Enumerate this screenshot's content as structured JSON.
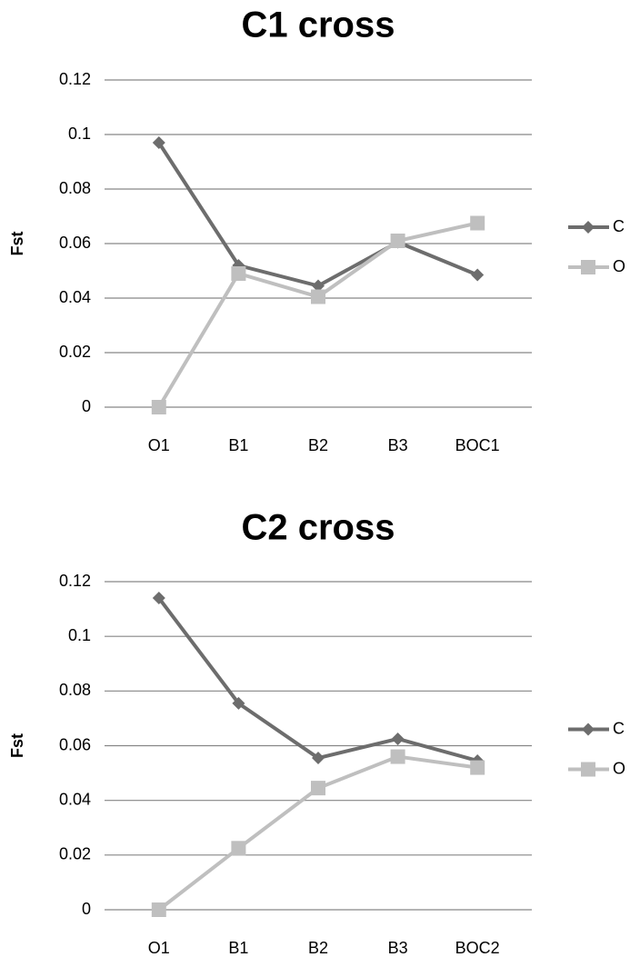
{
  "chart_data": [
    {
      "type": "line",
      "title": "C1 cross",
      "y_label": "Fst",
      "categories": [
        "O1",
        "B1",
        "B2",
        "B3",
        "BOC1"
      ],
      "series": [
        {
          "name": "C",
          "color": "#6d6d6d",
          "marker": "diamond",
          "values": [
            0.097,
            0.052,
            0.0445,
            0.0605,
            0.0485
          ]
        },
        {
          "name": "O",
          "color": "#bfbfbf",
          "marker": "square",
          "values": [
            0,
            0.049,
            0.0405,
            0.061,
            0.0675
          ]
        }
      ],
      "ylim": [
        0,
        0.12
      ],
      "yticks": [
        0,
        0.02,
        0.04,
        0.06,
        0.08,
        0.1,
        0.12
      ],
      "grid": true,
      "legend": "right"
    },
    {
      "type": "line",
      "title": "C2 cross",
      "y_label": "Fst",
      "categories": [
        "O1",
        "B1",
        "B2",
        "B3",
        "BOC2"
      ],
      "series": [
        {
          "name": "C",
          "color": "#6d6d6d",
          "marker": "diamond",
          "values": [
            0.114,
            0.0755,
            0.0555,
            0.0625,
            0.0545
          ]
        },
        {
          "name": "O",
          "color": "#bfbfbf",
          "marker": "square",
          "values": [
            0,
            0.0225,
            0.0445,
            0.056,
            0.052
          ]
        }
      ],
      "ylim": [
        0,
        0.12
      ],
      "yticks": [
        0,
        0.02,
        0.04,
        0.06,
        0.08,
        0.1,
        0.12
      ],
      "grid": true,
      "legend": "right"
    }
  ]
}
